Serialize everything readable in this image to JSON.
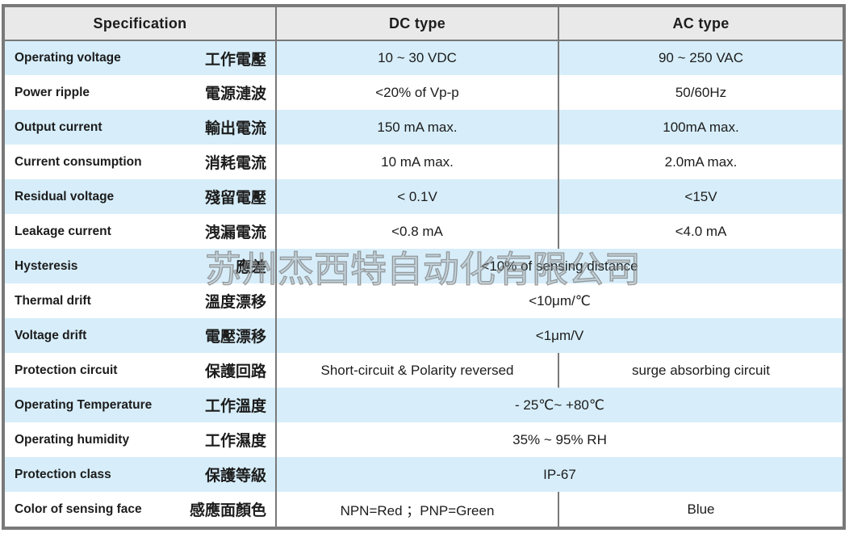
{
  "header": {
    "spec": "Specification",
    "dc": "DC type",
    "ac": "AC type"
  },
  "rows": [
    {
      "en": "Operating voltage",
      "zh": "工作電壓",
      "dc": "10 ~ 30 VDC",
      "ac": "90 ~ 250 VAC"
    },
    {
      "en": "Power ripple",
      "zh": "電源漣波",
      "dc": "<20% of Vp-p",
      "ac": "50/60Hz"
    },
    {
      "en": "Output current",
      "zh": "輸出電流",
      "dc": "150 mA max.",
      "ac": "100mA max."
    },
    {
      "en": "Current consumption",
      "zh": "消耗電流",
      "dc": "10 mA max.",
      "ac": "2.0mA max."
    },
    {
      "en": "Residual voltage",
      "zh": "殘留電壓",
      "dc": "< 0.1V",
      "ac": "<15V"
    },
    {
      "en": "Leakage current",
      "zh": "洩漏電流",
      "dc": "<0.8 mA",
      "ac": "<4.0 mA"
    },
    {
      "en": "Hysteresis",
      "zh": "應差",
      "merged": "<10% of sensing distance"
    },
    {
      "en": "Thermal drift",
      "zh": "溫度漂移",
      "merged": "<10μm/℃"
    },
    {
      "en": "Voltage drift",
      "zh": "電壓漂移",
      "merged": "<1μm/V"
    },
    {
      "en": "Protection circuit",
      "zh": "保護回路",
      "dc": "Short-circuit & Polarity reversed",
      "ac": "surge absorbing circuit"
    },
    {
      "en": "Operating Temperature",
      "zh": "工作溫度",
      "merged": "- 25℃~ +80℃"
    },
    {
      "en": "Operating humidity",
      "zh": "工作濕度",
      "merged": "35% ~ 95% RH"
    },
    {
      "en": "Protection class",
      "zh": "保護等級",
      "merged": "IP-67"
    },
    {
      "en": "Color of sensing face",
      "zh": "感應面顏色",
      "dc": "NPN=Red ；PNP=Green",
      "ac": "Blue"
    }
  ],
  "watermark": {
    "text": "苏州杰西特自动化有限公司"
  },
  "colors": {
    "row_blue": "#d7eefa",
    "header_gray": "#e9e9e9",
    "border_gray": "#797979",
    "text_dark": "#1c1c1c",
    "watermark_gray": "#8a8a8a"
  }
}
